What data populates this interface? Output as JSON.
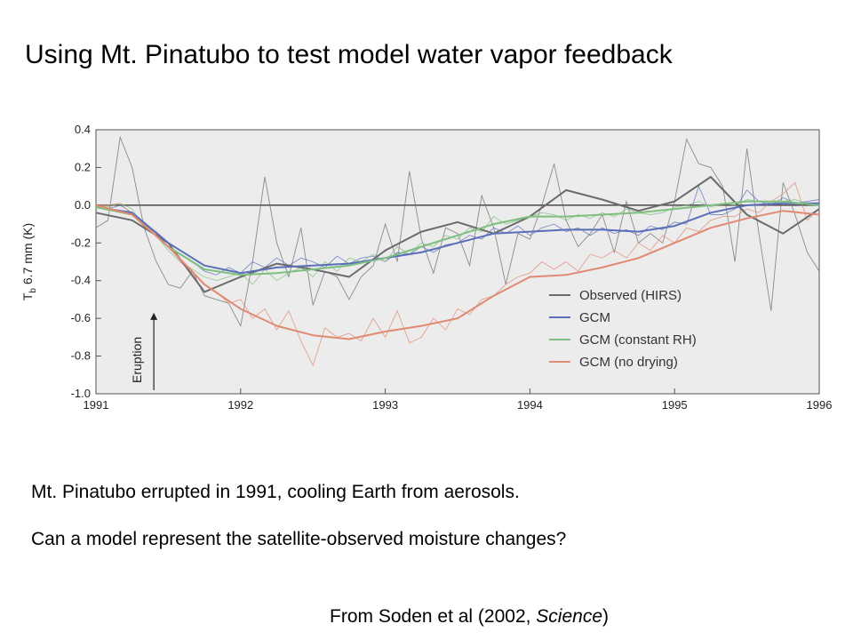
{
  "slide": {
    "title": "Using Mt. Pinatubo to test model water vapor feedback",
    "caption": "Mt. Pinatubo errupted in 1991, cooling Earth from aerosols.",
    "question": "Can a model represent the satellite-observed moisture changes?",
    "credit_prefix": "From Soden et al (2002, ",
    "credit_journal": "Science",
    "credit_suffix": ")"
  },
  "chart_data": {
    "type": "line",
    "ylabel": "T",
    "ylabel_sub": "b",
    "ylabel_rest": " 6.7 mm (K)",
    "xlim": [
      1991,
      1996
    ],
    "ylim": [
      -1.0,
      0.4
    ],
    "x_ticks": [
      "1991",
      "1992",
      "1993",
      "1994",
      "1995",
      "1996"
    ],
    "y_ticks": [
      "0.4",
      "0.2",
      "0.0",
      "-0.2",
      "-0.4",
      "-0.6",
      "-0.8",
      "-1.0"
    ],
    "y_tick_values": [
      0.4,
      0.2,
      0.0,
      -0.2,
      -0.4,
      -0.6,
      -0.8,
      -1.0
    ],
    "grid": false,
    "zero_line": true,
    "annotation": {
      "text": "Eruption",
      "x": 1991.4
    },
    "legend_position": "lower-right",
    "series": [
      {
        "name": "Observed (HIRS)",
        "color": "#6b6b6b",
        "raw_x": [
          1991.0,
          1991.083,
          1991.167,
          1991.25,
          1991.333,
          1991.417,
          1991.5,
          1991.583,
          1991.667,
          1991.75,
          1991.833,
          1991.917,
          1992.0,
          1992.083,
          1992.167,
          1992.25,
          1992.333,
          1992.417,
          1992.5,
          1992.583,
          1992.667,
          1992.75,
          1992.833,
          1992.917,
          1993.0,
          1993.083,
          1993.167,
          1993.25,
          1993.333,
          1993.417,
          1993.5,
          1993.583,
          1993.667,
          1993.75,
          1993.833,
          1993.917,
          1994.0,
          1994.083,
          1994.167,
          1994.25,
          1994.333,
          1994.417,
          1994.5,
          1994.583,
          1994.667,
          1994.75,
          1994.833,
          1994.917,
          1995.0,
          1995.083,
          1995.167,
          1995.25,
          1995.333,
          1995.417,
          1995.5,
          1995.583,
          1995.667,
          1995.75,
          1995.833,
          1995.917,
          1996.0
        ],
        "raw_y": [
          -0.12,
          -0.08,
          0.36,
          0.2,
          -0.12,
          -0.3,
          -0.42,
          -0.44,
          -0.35,
          -0.48,
          -0.5,
          -0.52,
          -0.64,
          -0.3,
          0.15,
          -0.2,
          -0.38,
          -0.12,
          -0.53,
          -0.35,
          -0.38,
          -0.5,
          -0.38,
          -0.32,
          -0.1,
          -0.3,
          0.18,
          -0.18,
          -0.36,
          -0.12,
          -0.15,
          -0.32,
          0.05,
          -0.12,
          -0.42,
          -0.15,
          -0.18,
          0.0,
          0.22,
          -0.08,
          -0.22,
          -0.15,
          -0.05,
          -0.25,
          0.02,
          -0.2,
          -0.15,
          -0.2,
          0.02,
          0.35,
          0.22,
          0.2,
          0.1,
          -0.3,
          0.3,
          -0.15,
          -0.56,
          0.12,
          -0.05,
          -0.25,
          -0.35
        ],
        "smooth_x": [
          1991.0,
          1991.25,
          1991.5,
          1991.75,
          1992.0,
          1992.25,
          1992.5,
          1992.75,
          1993.0,
          1993.25,
          1993.5,
          1993.75,
          1994.0,
          1994.25,
          1994.5,
          1994.75,
          1995.0,
          1995.25,
          1995.5,
          1995.75,
          1996.0
        ],
        "smooth_y": [
          -0.04,
          -0.08,
          -0.2,
          -0.46,
          -0.38,
          -0.31,
          -0.34,
          -0.38,
          -0.24,
          -0.14,
          -0.09,
          -0.15,
          -0.06,
          0.08,
          0.03,
          -0.03,
          0.02,
          0.15,
          -0.05,
          -0.15,
          -0.02
        ]
      },
      {
        "name": "GCM",
        "color": "#5a6fb8",
        "raw_x": [
          1991.0,
          1991.083,
          1991.167,
          1991.25,
          1991.333,
          1991.417,
          1991.5,
          1991.583,
          1991.667,
          1991.75,
          1991.833,
          1991.917,
          1992.0,
          1992.083,
          1992.167,
          1992.25,
          1992.333,
          1992.417,
          1992.5,
          1992.583,
          1992.667,
          1992.75,
          1992.833,
          1992.917,
          1993.0,
          1993.083,
          1993.167,
          1993.25,
          1993.333,
          1993.417,
          1993.5,
          1993.583,
          1993.667,
          1993.75,
          1993.833,
          1993.917,
          1994.0,
          1994.083,
          1994.167,
          1994.25,
          1994.333,
          1994.417,
          1994.5,
          1994.583,
          1994.667,
          1994.75,
          1994.833,
          1994.917,
          1995.0,
          1995.083,
          1995.167,
          1995.25,
          1995.333,
          1995.417,
          1995.5,
          1995.583,
          1995.667,
          1995.75,
          1995.833,
          1995.917,
          1996.0
        ],
        "raw_y": [
          -0.01,
          -0.02,
          0.0,
          -0.04,
          -0.1,
          -0.15,
          -0.22,
          -0.26,
          -0.3,
          -0.35,
          -0.37,
          -0.33,
          -0.36,
          -0.3,
          -0.33,
          -0.28,
          -0.32,
          -0.28,
          -0.3,
          -0.33,
          -0.27,
          -0.31,
          -0.28,
          -0.27,
          -0.3,
          -0.25,
          -0.26,
          -0.22,
          -0.25,
          -0.21,
          -0.2,
          -0.16,
          -0.18,
          -0.12,
          -0.15,
          -0.11,
          -0.16,
          -0.12,
          -0.1,
          -0.14,
          -0.12,
          -0.16,
          -0.12,
          -0.15,
          -0.13,
          -0.16,
          -0.11,
          -0.13,
          -0.09,
          -0.1,
          0.1,
          -0.05,
          -0.05,
          -0.02,
          0.08,
          0.02,
          0.0,
          0.04,
          0.01,
          0.02,
          0.03
        ],
        "smooth_x": [
          1991.0,
          1991.25,
          1991.5,
          1991.75,
          1992.0,
          1992.25,
          1992.5,
          1992.75,
          1993.0,
          1993.25,
          1993.5,
          1993.75,
          1994.0,
          1994.25,
          1994.5,
          1994.75,
          1995.0,
          1995.25,
          1995.5,
          1995.75,
          1996.0
        ],
        "smooth_y": [
          -0.01,
          -0.04,
          -0.2,
          -0.32,
          -0.36,
          -0.33,
          -0.32,
          -0.31,
          -0.28,
          -0.25,
          -0.2,
          -0.15,
          -0.14,
          -0.13,
          -0.13,
          -0.14,
          -0.11,
          -0.04,
          0.0,
          0.01,
          0.01
        ]
      },
      {
        "name": "GCM (constant RH)",
        "color": "#7fbf7f",
        "raw_x": [
          1991.0,
          1991.083,
          1991.167,
          1991.25,
          1991.333,
          1991.417,
          1991.5,
          1991.583,
          1991.667,
          1991.75,
          1991.833,
          1991.917,
          1992.0,
          1992.083,
          1992.167,
          1992.25,
          1992.333,
          1992.417,
          1992.5,
          1992.583,
          1992.667,
          1992.75,
          1992.833,
          1992.917,
          1993.0,
          1993.083,
          1993.167,
          1993.25,
          1993.333,
          1993.417,
          1993.5,
          1993.583,
          1993.667,
          1993.75,
          1993.833,
          1993.917,
          1994.0,
          1994.083,
          1994.167,
          1994.25,
          1994.333,
          1994.417,
          1994.5,
          1994.583,
          1994.667,
          1994.75,
          1994.833,
          1994.917,
          1995.0,
          1995.083,
          1995.167,
          1995.25,
          1995.333,
          1995.417,
          1995.5,
          1995.583,
          1995.667,
          1995.75,
          1995.833,
          1995.917,
          1996.0
        ],
        "raw_y": [
          0.0,
          -0.01,
          0.01,
          -0.02,
          -0.12,
          -0.16,
          -0.24,
          -0.3,
          -0.34,
          -0.38,
          -0.4,
          -0.38,
          -0.36,
          -0.42,
          -0.34,
          -0.4,
          -0.36,
          -0.33,
          -0.38,
          -0.3,
          -0.35,
          -0.28,
          -0.3,
          -0.26,
          -0.3,
          -0.22,
          -0.26,
          -0.2,
          -0.22,
          -0.16,
          -0.18,
          -0.12,
          -0.14,
          -0.06,
          -0.1,
          -0.08,
          -0.06,
          -0.04,
          -0.05,
          -0.08,
          -0.05,
          -0.07,
          -0.04,
          -0.06,
          -0.02,
          -0.04,
          -0.05,
          -0.04,
          -0.01,
          0.0,
          0.02,
          -0.01,
          0.01,
          0.0,
          0.03,
          0.02,
          0.01,
          0.02,
          0.03,
          0.01,
          0.0
        ],
        "smooth_x": [
          1991.0,
          1991.25,
          1991.5,
          1991.75,
          1992.0,
          1992.25,
          1992.5,
          1992.75,
          1993.0,
          1993.25,
          1993.5,
          1993.75,
          1994.0,
          1994.25,
          1994.5,
          1994.75,
          1995.0,
          1995.25,
          1995.5,
          1995.75,
          1996.0
        ],
        "smooth_y": [
          -0.01,
          -0.05,
          -0.22,
          -0.34,
          -0.37,
          -0.36,
          -0.34,
          -0.32,
          -0.28,
          -0.22,
          -0.16,
          -0.1,
          -0.06,
          -0.06,
          -0.05,
          -0.04,
          -0.02,
          0.0,
          0.02,
          0.02,
          0.0
        ]
      },
      {
        "name": "GCM (no drying)",
        "color": "#e08a72",
        "raw_x": [
          1991.0,
          1991.083,
          1991.167,
          1991.25,
          1991.333,
          1991.417,
          1991.5,
          1991.583,
          1991.667,
          1991.75,
          1991.833,
          1991.917,
          1992.0,
          1992.083,
          1992.167,
          1992.25,
          1992.333,
          1992.417,
          1992.5,
          1992.583,
          1992.667,
          1992.75,
          1992.833,
          1992.917,
          1993.0,
          1993.083,
          1993.167,
          1993.25,
          1993.333,
          1993.417,
          1993.5,
          1993.583,
          1993.667,
          1993.75,
          1993.833,
          1993.917,
          1994.0,
          1994.083,
          1994.167,
          1994.25,
          1994.333,
          1994.417,
          1994.5,
          1994.583,
          1994.667,
          1994.75,
          1994.833,
          1994.917,
          1995.0,
          1995.083,
          1995.167,
          1995.25,
          1995.333,
          1995.417,
          1995.5,
          1995.583,
          1995.667,
          1995.75,
          1995.833,
          1995.917,
          1996.0
        ],
        "raw_y": [
          0.0,
          0.0,
          0.01,
          -0.05,
          -0.1,
          -0.14,
          -0.2,
          -0.3,
          -0.36,
          -0.42,
          -0.46,
          -0.52,
          -0.5,
          -0.6,
          -0.55,
          -0.66,
          -0.56,
          -0.72,
          -0.85,
          -0.65,
          -0.7,
          -0.68,
          -0.72,
          -0.6,
          -0.7,
          -0.56,
          -0.73,
          -0.7,
          -0.6,
          -0.66,
          -0.55,
          -0.58,
          -0.5,
          -0.48,
          -0.42,
          -0.38,
          -0.36,
          -0.3,
          -0.34,
          -0.3,
          -0.35,
          -0.26,
          -0.28,
          -0.24,
          -0.28,
          -0.2,
          -0.24,
          -0.16,
          -0.2,
          -0.12,
          -0.14,
          -0.08,
          -0.06,
          -0.06,
          -0.02,
          -0.04,
          0.02,
          0.06,
          0.12,
          -0.08,
          -0.02
        ],
        "smooth_x": [
          1991.0,
          1991.25,
          1991.5,
          1991.75,
          1992.0,
          1992.25,
          1992.5,
          1992.75,
          1993.0,
          1993.25,
          1993.5,
          1993.75,
          1994.0,
          1994.25,
          1994.5,
          1994.75,
          1995.0,
          1995.25,
          1995.5,
          1995.75,
          1996.0
        ],
        "smooth_y": [
          0.0,
          -0.05,
          -0.22,
          -0.42,
          -0.55,
          -0.64,
          -0.69,
          -0.71,
          -0.67,
          -0.64,
          -0.6,
          -0.48,
          -0.38,
          -0.37,
          -0.33,
          -0.28,
          -0.2,
          -0.12,
          -0.07,
          -0.03,
          -0.05
        ]
      }
    ]
  }
}
